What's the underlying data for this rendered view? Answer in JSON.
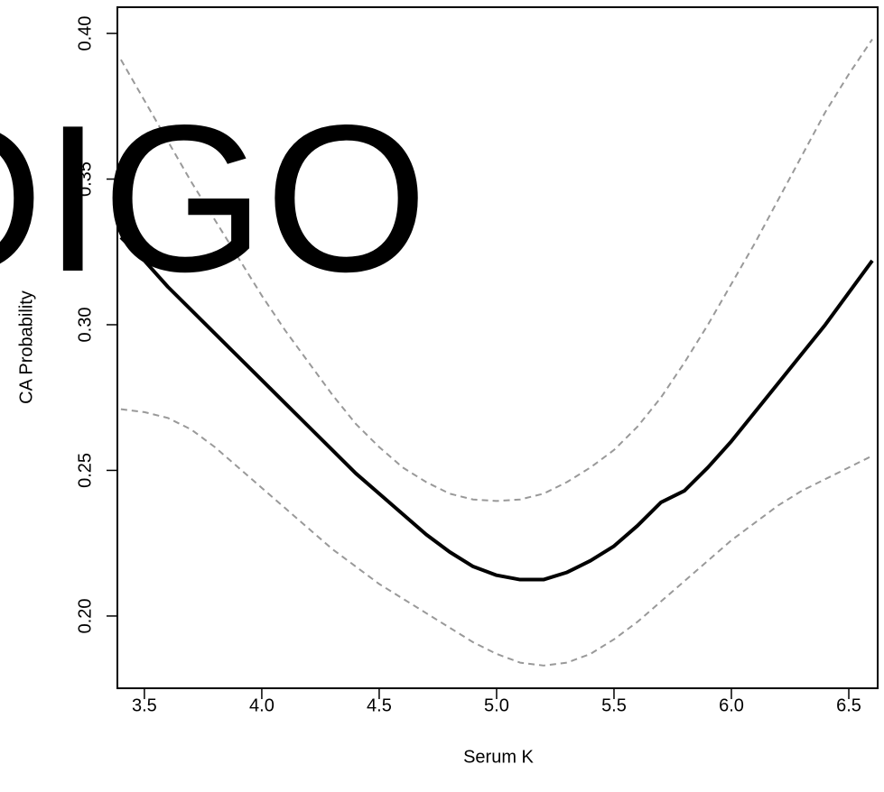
{
  "chart_data": {
    "type": "line",
    "xlabel": "Serum K",
    "ylabel": "CA Probability",
    "watermark": "OIGO",
    "watermark_color": "#fb9a3f",
    "x": [
      3.4,
      3.5,
      3.6,
      3.7,
      3.8,
      3.9,
      4.0,
      4.1,
      4.2,
      4.3,
      4.4,
      4.5,
      4.6,
      4.7,
      4.8,
      4.9,
      5.0,
      5.1,
      5.2,
      5.3,
      5.4,
      5.5,
      5.6,
      5.7,
      5.8,
      5.9,
      6.0,
      6.1,
      6.2,
      6.3,
      6.4,
      6.5,
      6.6
    ],
    "series": [
      {
        "color": "#000000",
        "dash": false,
        "values": [
          0.33,
          0.322,
          0.313,
          0.305,
          0.297,
          0.289,
          0.281,
          0.273,
          0.265,
          0.257,
          0.249,
          0.242,
          0.235,
          0.228,
          0.222,
          0.217,
          0.214,
          0.2125,
          0.2125,
          0.215,
          0.219,
          0.224,
          0.231,
          0.239,
          0.243,
          0.251,
          0.26,
          0.27,
          0.28,
          0.29,
          0.3,
          0.311,
          0.322
        ]
      },
      {
        "color": "#999999",
        "dash": true,
        "values": [
          0.391,
          0.377,
          0.363,
          0.349,
          0.336,
          0.323,
          0.31,
          0.298,
          0.287,
          0.276,
          0.266,
          0.258,
          0.251,
          0.246,
          0.242,
          0.24,
          0.2395,
          0.24,
          0.242,
          0.246,
          0.251,
          0.257,
          0.265,
          0.275,
          0.287,
          0.3,
          0.314,
          0.328,
          0.343,
          0.358,
          0.373,
          0.386,
          0.398
        ]
      },
      {
        "color": "#999999",
        "dash": true,
        "values": [
          0.271,
          0.27,
          0.268,
          0.264,
          0.258,
          0.251,
          0.244,
          0.237,
          0.23,
          0.223,
          0.217,
          0.211,
          0.206,
          0.201,
          0.196,
          0.191,
          0.187,
          0.184,
          0.183,
          0.184,
          0.187,
          0.192,
          0.198,
          0.205,
          0.212,
          0.219,
          0.226,
          0.232,
          0.238,
          0.243,
          0.247,
          0.251,
          0.255
        ]
      }
    ],
    "xlim": [
      3.385,
      6.623
    ],
    "ylim": [
      0.1752,
      0.409
    ],
    "xticks": [
      3.5,
      {
        "value": 4,
        "label": "4.0"
      },
      4.5,
      {
        "value": 5,
        "label": "5.0"
      },
      5.5,
      {
        "value": 6,
        "label": "6.0"
      },
      6.5
    ],
    "yticks": [
      {
        "value": 0.2,
        "label": "0.20"
      },
      0.25,
      {
        "value": 0.3,
        "label": "0.30"
      },
      0.35,
      {
        "value": 0.4,
        "label": "0.40"
      }
    ]
  }
}
